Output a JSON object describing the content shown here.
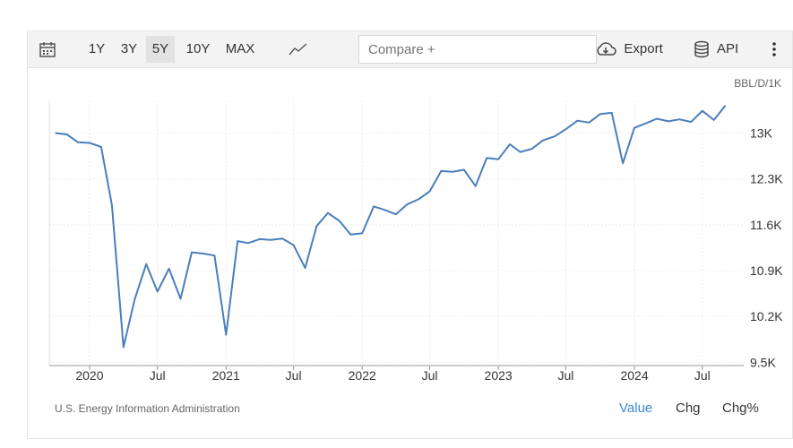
{
  "toolbar": {
    "calendar_icon": "calendar-icon",
    "ranges": [
      "1Y",
      "3Y",
      "5Y",
      "10Y",
      "MAX"
    ],
    "active_range": "5Y",
    "chart_type_icon": "line-chart-icon",
    "compare_placeholder": "Compare +",
    "export_label": "Export",
    "export_icon": "cloud-download-icon",
    "api_label": "API",
    "api_icon": "database-icon",
    "more_icon": "vertical-dots-icon"
  },
  "unit_label": "BBL/D/1K",
  "source": "U.S. Energy Information Administration",
  "tabs": {
    "value": "Value",
    "chg": "Chg",
    "chg_pct": "Chg%"
  },
  "active_tab": "Value",
  "colors": {
    "line": "#4a7ebb",
    "active_tab": "#3a8ad2"
  },
  "chart_data": {
    "type": "line",
    "title": "",
    "xlabel": "",
    "ylabel": "BBL/D/1K",
    "x_tick_labels": [
      "2020",
      "Jul",
      "2021",
      "Jul",
      "2022",
      "Jul",
      "2023",
      "Jul",
      "2024",
      "Jul"
    ],
    "x_tick_dates": [
      "2020-01-01",
      "2020-07-01",
      "2021-01-01",
      "2021-07-01",
      "2022-01-01",
      "2022-07-01",
      "2023-01-01",
      "2023-07-01",
      "2024-01-01",
      "2024-07-01"
    ],
    "y_ticks": [
      9500,
      10200,
      10900,
      11600,
      12300,
      13000
    ],
    "y_tick_labels": [
      "9.5K",
      "10.2K",
      "10.9K",
      "11.6K",
      "12.3K",
      "13K"
    ],
    "ylim": [
      9450,
      13500
    ],
    "xlim": [
      "2019-09-15",
      "2024-10-20"
    ],
    "grid": true,
    "series": [
      {
        "x": [
          "2019-10",
          "2019-11",
          "2019-12",
          "2020-01",
          "2020-02",
          "2020-03",
          "2020-04",
          "2020-05",
          "2020-06",
          "2020-07",
          "2020-08",
          "2020-09",
          "2020-10",
          "2020-11",
          "2020-12",
          "2021-01",
          "2021-02",
          "2021-03",
          "2021-04",
          "2021-05",
          "2021-06",
          "2021-07",
          "2021-08",
          "2021-09",
          "2021-10",
          "2021-11",
          "2021-12",
          "2022-01",
          "2022-02",
          "2022-03",
          "2022-04",
          "2022-05",
          "2022-06",
          "2022-07",
          "2022-08",
          "2022-09",
          "2022-10",
          "2022-11",
          "2022-12",
          "2023-01",
          "2023-02",
          "2023-03",
          "2023-04",
          "2023-05",
          "2023-06",
          "2023-07",
          "2023-08",
          "2023-09",
          "2023-10",
          "2023-11",
          "2023-12",
          "2024-01",
          "2024-02",
          "2024-03",
          "2024-04",
          "2024-05",
          "2024-06",
          "2024-07",
          "2024-08",
          "2024-09"
        ],
        "values": [
          13000,
          12980,
          12860,
          12850,
          12790,
          11900,
          9730,
          10460,
          11000,
          10580,
          10930,
          10470,
          11180,
          11160,
          11130,
          9920,
          11350,
          11320,
          11380,
          11370,
          11390,
          11290,
          10940,
          11580,
          11780,
          11660,
          11450,
          11470,
          11880,
          11830,
          11760,
          11910,
          11990,
          12110,
          12420,
          12410,
          12440,
          12190,
          12620,
          12600,
          12830,
          12710,
          12760,
          12890,
          12950,
          13060,
          13190,
          13160,
          13290,
          13310,
          12540,
          13080,
          13150,
          13220,
          13180,
          13210,
          13170,
          13340,
          13200,
          13420
        ]
      }
    ]
  }
}
